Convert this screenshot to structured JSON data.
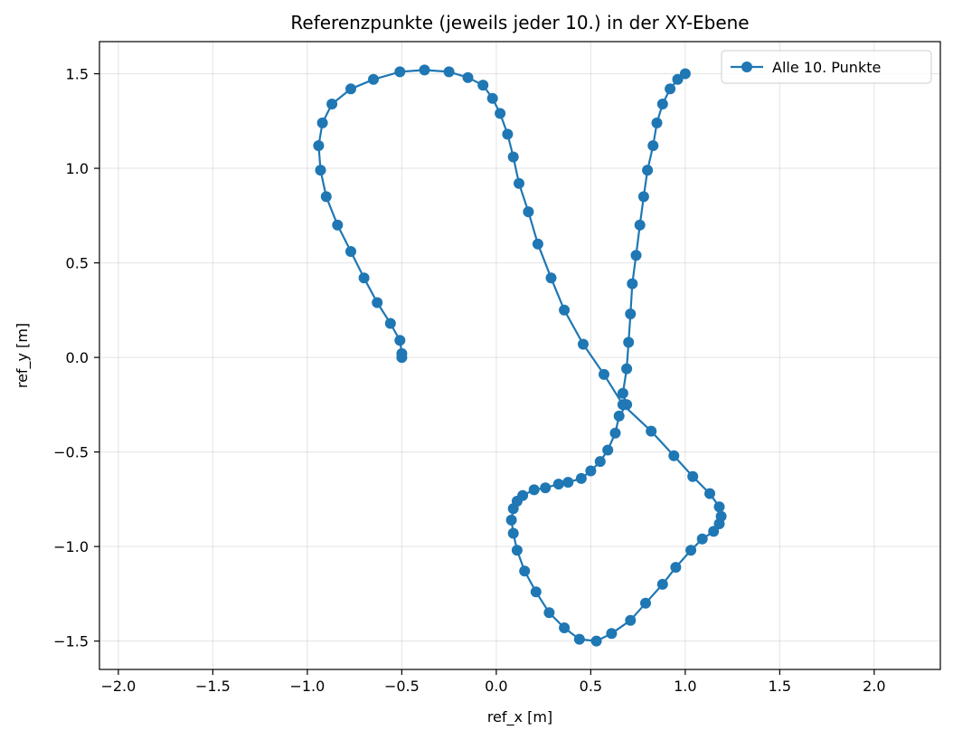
{
  "chart_data": {
    "type": "line",
    "title": "Referenzpunkte (jeweils jeder 10.) in der XY-Ebene",
    "xlabel": "ref_x [m]",
    "ylabel": "ref_y [m]",
    "xlim": [
      -2.1,
      2.35
    ],
    "ylim": [
      -1.65,
      1.67
    ],
    "grid": true,
    "legend_position": "top-right",
    "x_ticks": [
      -2.0,
      -1.5,
      -1.0,
      -0.5,
      0.0,
      0.5,
      1.0,
      1.5,
      2.0
    ],
    "x_tick_labels": [
      "−2.0",
      "−1.5",
      "−1.0",
      "−0.5",
      "0.0",
      "0.5",
      "1.0",
      "1.5",
      "2.0"
    ],
    "y_ticks": [
      -1.5,
      -1.0,
      -0.5,
      0.0,
      0.5,
      1.0,
      1.5
    ],
    "y_tick_labels": [
      "−1.5",
      "−1.0",
      "−0.5",
      "0.0",
      "0.5",
      "1.0",
      "1.5"
    ],
    "series": [
      {
        "name": "Alle 10. Punkte",
        "color": "#1f77b4",
        "marker": "circle",
        "points": [
          [
            -0.5,
            0.0
          ],
          [
            -0.5,
            0.02
          ],
          [
            -0.51,
            0.09
          ],
          [
            -0.56,
            0.18
          ],
          [
            -0.63,
            0.29
          ],
          [
            -0.7,
            0.42
          ],
          [
            -0.77,
            0.56
          ],
          [
            -0.84,
            0.7
          ],
          [
            -0.9,
            0.85
          ],
          [
            -0.93,
            0.99
          ],
          [
            -0.94,
            1.12
          ],
          [
            -0.92,
            1.24
          ],
          [
            -0.87,
            1.34
          ],
          [
            -0.77,
            1.42
          ],
          [
            -0.65,
            1.47
          ],
          [
            -0.51,
            1.51
          ],
          [
            -0.38,
            1.52
          ],
          [
            -0.25,
            1.51
          ],
          [
            -0.15,
            1.48
          ],
          [
            -0.07,
            1.44
          ],
          [
            -0.02,
            1.37
          ],
          [
            0.02,
            1.29
          ],
          [
            0.06,
            1.18
          ],
          [
            0.09,
            1.06
          ],
          [
            0.12,
            0.92
          ],
          [
            0.17,
            0.77
          ],
          [
            0.22,
            0.6
          ],
          [
            0.29,
            0.42
          ],
          [
            0.36,
            0.25
          ],
          [
            0.46,
            0.07
          ],
          [
            0.57,
            -0.09
          ],
          [
            0.67,
            -0.25
          ],
          [
            0.82,
            -0.39
          ],
          [
            0.94,
            -0.52
          ],
          [
            1.04,
            -0.63
          ],
          [
            1.13,
            -0.72
          ],
          [
            1.18,
            -0.79
          ],
          [
            1.19,
            -0.84
          ],
          [
            1.18,
            -0.88
          ],
          [
            1.15,
            -0.92
          ],
          [
            1.09,
            -0.96
          ],
          [
            1.03,
            -1.02
          ],
          [
            0.95,
            -1.11
          ],
          [
            0.88,
            -1.2
          ],
          [
            0.79,
            -1.3
          ],
          [
            0.71,
            -1.39
          ],
          [
            0.61,
            -1.46
          ],
          [
            0.53,
            -1.5
          ],
          [
            0.44,
            -1.49
          ],
          [
            0.36,
            -1.43
          ],
          [
            0.28,
            -1.35
          ],
          [
            0.21,
            -1.24
          ],
          [
            0.15,
            -1.13
          ],
          [
            0.11,
            -1.02
          ],
          [
            0.09,
            -0.93
          ],
          [
            0.08,
            -0.86
          ],
          [
            0.09,
            -0.8
          ],
          [
            0.11,
            -0.76
          ],
          [
            0.14,
            -0.73
          ],
          [
            0.2,
            -0.7
          ],
          [
            0.26,
            -0.69
          ],
          [
            0.33,
            -0.67
          ],
          [
            0.38,
            -0.66
          ],
          [
            0.45,
            -0.64
          ],
          [
            0.5,
            -0.6
          ],
          [
            0.55,
            -0.55
          ],
          [
            0.59,
            -0.49
          ],
          [
            0.63,
            -0.4
          ],
          [
            0.65,
            -0.31
          ],
          [
            0.69,
            -0.25
          ],
          [
            0.67,
            -0.19
          ],
          [
            0.69,
            -0.06
          ],
          [
            0.7,
            0.08
          ],
          [
            0.71,
            0.23
          ],
          [
            0.72,
            0.39
          ],
          [
            0.74,
            0.54
          ],
          [
            0.76,
            0.7
          ],
          [
            0.78,
            0.85
          ],
          [
            0.8,
            0.99
          ],
          [
            0.83,
            1.12
          ],
          [
            0.85,
            1.24
          ],
          [
            0.88,
            1.34
          ],
          [
            0.92,
            1.42
          ],
          [
            0.96,
            1.47
          ],
          [
            1.0,
            1.5
          ]
        ]
      }
    ]
  }
}
